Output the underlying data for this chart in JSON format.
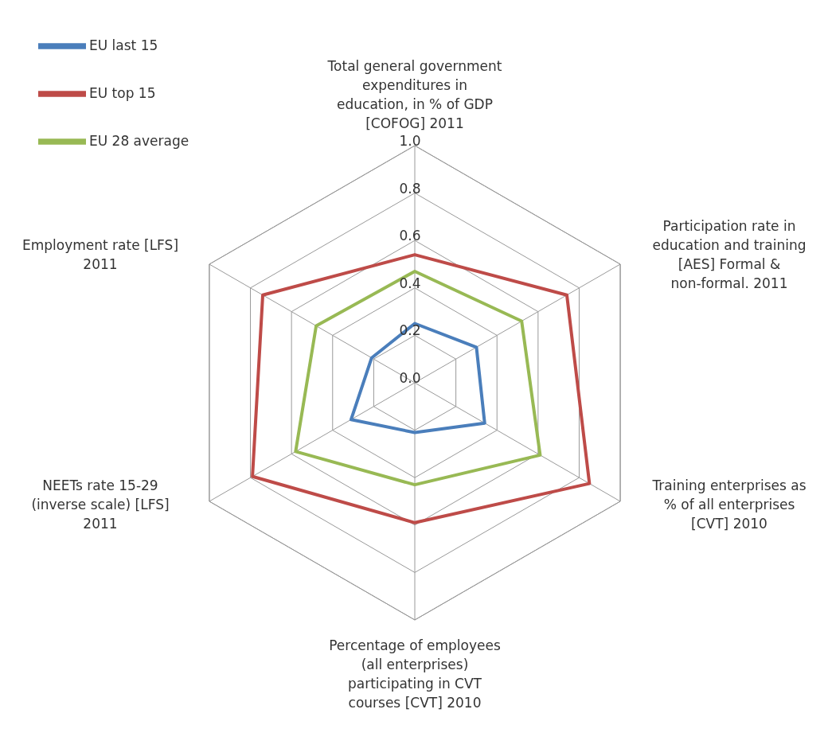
{
  "chart_data": {
    "type": "radar",
    "categories": [
      "Total general government expenditures in education, in % of GDP [COFOG] 2011",
      "Participation rate in education and training [AES] Formal & non-formal. 2011",
      "Training enterprises as % of all enterprises [CVT] 2010",
      "Percentage of employees (all enterprises) participating in CVT courses [CVT] 2010",
      "NEETs rate 15-29 (inverse scale) [LFS] 2011",
      "Employment rate [LFS] 2011"
    ],
    "series": [
      {
        "name": "EU last 15",
        "color": "#4a7ebb",
        "values": [
          0.25,
          0.3,
          0.34,
          0.21,
          0.31,
          0.21
        ]
      },
      {
        "name": "EU top 15",
        "color": "#be4b48",
        "values": [
          0.54,
          0.74,
          0.85,
          0.59,
          0.79,
          0.74
        ]
      },
      {
        "name": "EU 28 average",
        "color": "#98b954",
        "values": [
          0.47,
          0.52,
          0.61,
          0.43,
          0.58,
          0.48
        ]
      }
    ],
    "ylim": [
      0,
      1
    ],
    "yticks": [
      {
        "value": 0,
        "label": "0.0"
      },
      {
        "value": 0.2,
        "label": "0.2"
      },
      {
        "value": 0.4,
        "label": "0.4"
      },
      {
        "value": 0.6,
        "label": "0.6"
      },
      {
        "value": 0.8,
        "label": "0.8"
      },
      {
        "value": 1,
        "label": "1.0"
      }
    ],
    "grid": true,
    "legend": "top left",
    "marker": "none",
    "line_style": "solid"
  }
}
